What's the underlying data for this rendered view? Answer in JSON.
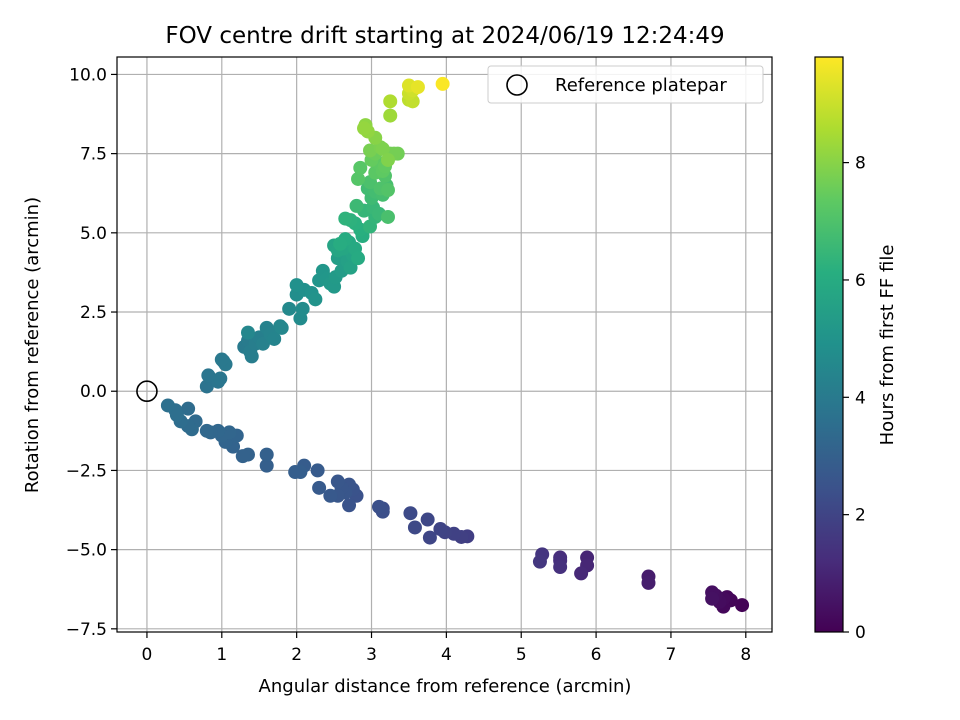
{
  "chart_data": {
    "type": "scatter",
    "title": "FOV centre drift starting at 2024/06/19 12:24:49",
    "xlabel": "Angular distance from reference (arcmin)",
    "ylabel": "Rotation from reference (arcmin)",
    "xlim": [
      -0.4,
      8.35
    ],
    "ylim": [
      -7.6,
      10.55
    ],
    "xticks": [
      0,
      1,
      2,
      3,
      4,
      5,
      6,
      7,
      8
    ],
    "xtick_labels": [
      "0",
      "1",
      "2",
      "3",
      "4",
      "5",
      "6",
      "7",
      "8"
    ],
    "yticks": [
      -7.5,
      -5.0,
      -2.5,
      0.0,
      2.5,
      5.0,
      7.5,
      10.0
    ],
    "ytick_labels": [
      "−7.5",
      "−5.0",
      "−2.5",
      "0.0",
      "2.5",
      "5.0",
      "7.5",
      "10.0"
    ],
    "grid": true,
    "legend": {
      "position": "top-right",
      "entries": [
        {
          "label": "Reference platepar",
          "marker": "open-circle"
        }
      ]
    },
    "reference_point": {
      "x": 0.0,
      "y": 0.0
    },
    "colorbar": {
      "label": "Hours from first FF file",
      "colormap": "viridis",
      "range": [
        0,
        9.8
      ],
      "ticks": [
        0,
        2,
        4,
        6,
        8
      ],
      "tick_labels": [
        "0",
        "2",
        "4",
        "6",
        "8"
      ]
    },
    "series": [
      {
        "points": [
          [
            7.95,
            -6.75,
            0.05
          ],
          [
            7.8,
            -6.6,
            0.1
          ],
          [
            7.75,
            -6.5,
            0.15
          ],
          [
            7.7,
            -6.8,
            0.2
          ],
          [
            7.7,
            -6.55,
            0.25
          ],
          [
            7.65,
            -6.65,
            0.3
          ],
          [
            7.6,
            -6.45,
            0.35
          ],
          [
            7.55,
            -6.35,
            0.4
          ],
          [
            7.55,
            -6.55,
            0.45
          ],
          [
            6.7,
            -5.85,
            0.75
          ],
          [
            6.7,
            -6.05,
            0.8
          ],
          [
            5.88,
            -5.25,
            1.0
          ],
          [
            5.88,
            -5.5,
            1.05
          ],
          [
            5.8,
            -5.75,
            1.1
          ],
          [
            5.52,
            -5.25,
            1.25
          ],
          [
            5.52,
            -5.35,
            1.3
          ],
          [
            5.52,
            -5.55,
            1.35
          ],
          [
            5.28,
            -5.15,
            1.5
          ],
          [
            5.25,
            -5.38,
            1.55
          ],
          [
            4.28,
            -4.58,
            1.8
          ],
          [
            4.2,
            -4.6,
            1.85
          ],
          [
            4.1,
            -4.5,
            1.9
          ],
          [
            3.98,
            -4.45,
            1.95
          ],
          [
            3.92,
            -4.35,
            2.0
          ],
          [
            3.78,
            -4.62,
            2.05
          ],
          [
            3.75,
            -4.05,
            2.1
          ],
          [
            3.58,
            -4.3,
            2.15
          ],
          [
            3.52,
            -3.85,
            2.2
          ],
          [
            3.15,
            -3.7,
            2.3
          ],
          [
            3.15,
            -3.8,
            2.35
          ],
          [
            3.1,
            -3.65,
            2.4
          ],
          [
            2.8,
            -3.3,
            2.45
          ],
          [
            2.75,
            -3.1,
            2.5
          ],
          [
            2.7,
            -3.6,
            2.5
          ],
          [
            2.7,
            -2.95,
            2.55
          ],
          [
            2.65,
            -3.2,
            2.6
          ],
          [
            2.6,
            -3.05,
            2.6
          ],
          [
            2.55,
            -3.3,
            2.65
          ],
          [
            2.55,
            -2.85,
            2.65
          ],
          [
            2.45,
            -3.3,
            2.7
          ],
          [
            2.3,
            -3.05,
            2.75
          ],
          [
            2.28,
            -2.5,
            2.8
          ],
          [
            2.1,
            -2.35,
            2.85
          ],
          [
            2.05,
            -2.55,
            2.9
          ],
          [
            1.98,
            -2.55,
            2.9
          ],
          [
            1.6,
            -2.35,
            2.95
          ],
          [
            1.6,
            -2.0,
            3.0
          ],
          [
            1.35,
            -2.0,
            3.05
          ],
          [
            1.28,
            -2.05,
            3.05
          ],
          [
            1.12,
            -1.6,
            3.1
          ],
          [
            1.15,
            -1.75,
            3.1
          ],
          [
            1.05,
            -1.6,
            3.15
          ],
          [
            1.2,
            -1.4,
            3.15
          ],
          [
            1.1,
            -1.3,
            3.2
          ],
          [
            1.0,
            -1.4,
            3.2
          ],
          [
            0.95,
            -1.25,
            3.25
          ],
          [
            0.85,
            -1.3,
            3.25
          ],
          [
            0.8,
            -1.25,
            3.3
          ],
          [
            0.65,
            -0.95,
            3.35
          ],
          [
            0.6,
            -1.2,
            3.4
          ],
          [
            0.55,
            -1.1,
            3.4
          ],
          [
            0.55,
            -0.55,
            3.45
          ],
          [
            0.45,
            -0.95,
            3.5
          ],
          [
            0.4,
            -0.75,
            3.55
          ],
          [
            0.38,
            -0.6,
            3.55
          ],
          [
            0.28,
            -0.45,
            3.6
          ],
          [
            0.8,
            0.15,
            3.7
          ],
          [
            0.85,
            0.4,
            3.75
          ],
          [
            0.95,
            0.3,
            3.8
          ],
          [
            0.82,
            0.5,
            3.8
          ],
          [
            0.98,
            0.4,
            3.85
          ],
          [
            1.02,
            0.95,
            3.9
          ],
          [
            1.05,
            0.85,
            3.95
          ],
          [
            1.0,
            1.0,
            3.95
          ],
          [
            1.3,
            1.4,
            4.0
          ],
          [
            1.35,
            1.6,
            4.05
          ],
          [
            1.38,
            1.25,
            4.1
          ],
          [
            1.4,
            1.1,
            4.1
          ],
          [
            1.45,
            1.5,
            4.15
          ],
          [
            1.5,
            1.7,
            4.2
          ],
          [
            1.55,
            1.5,
            4.25
          ],
          [
            1.6,
            2.0,
            4.3
          ],
          [
            1.65,
            1.8,
            4.35
          ],
          [
            1.7,
            1.65,
            4.4
          ],
          [
            1.78,
            2.05,
            4.45
          ],
          [
            1.8,
            2.0,
            4.5
          ],
          [
            1.35,
            1.85,
            4.5
          ],
          [
            1.9,
            2.6,
            4.6
          ],
          [
            2.05,
            2.3,
            4.65
          ],
          [
            2.08,
            2.6,
            4.7
          ],
          [
            2.0,
            3.05,
            4.8
          ],
          [
            2.1,
            3.2,
            4.85
          ],
          [
            2.0,
            3.35,
            4.9
          ],
          [
            2.2,
            3.1,
            4.95
          ],
          [
            2.25,
            2.9,
            5.0
          ],
          [
            2.3,
            3.5,
            5.05
          ],
          [
            2.35,
            3.8,
            5.1
          ],
          [
            2.4,
            3.55,
            5.15
          ],
          [
            2.45,
            3.4,
            5.2
          ],
          [
            2.5,
            3.3,
            5.25
          ],
          [
            2.52,
            3.6,
            5.3
          ],
          [
            2.6,
            3.8,
            5.35
          ],
          [
            2.65,
            4.0,
            5.4
          ],
          [
            2.55,
            4.2,
            5.45
          ],
          [
            2.6,
            4.4,
            5.5
          ],
          [
            2.68,
            4.1,
            5.55
          ],
          [
            2.72,
            3.9,
            5.6
          ],
          [
            2.75,
            4.3,
            5.65
          ],
          [
            2.5,
            4.6,
            5.7
          ],
          [
            2.55,
            4.45,
            5.75
          ],
          [
            2.62,
            4.5,
            5.8
          ],
          [
            2.7,
            4.7,
            5.85
          ],
          [
            2.78,
            4.5,
            5.9
          ],
          [
            2.82,
            4.2,
            5.95
          ],
          [
            2.65,
            4.8,
            6.0
          ],
          [
            2.58,
            4.65,
            6.05
          ],
          [
            2.88,
            4.9,
            6.1
          ],
          [
            2.85,
            5.1,
            6.15
          ],
          [
            2.78,
            5.3,
            6.2
          ],
          [
            2.72,
            5.4,
            6.25
          ],
          [
            2.65,
            5.45,
            6.3
          ],
          [
            2.98,
            5.2,
            6.35
          ],
          [
            3.05,
            5.5,
            6.4
          ],
          [
            2.9,
            5.7,
            6.45
          ],
          [
            3.02,
            5.8,
            6.5
          ],
          [
            3.1,
            5.6,
            6.55
          ],
          [
            2.8,
            5.85,
            6.6
          ],
          [
            3.0,
            6.1,
            6.65
          ],
          [
            2.95,
            6.4,
            6.7
          ],
          [
            3.05,
            6.3,
            6.75
          ],
          [
            3.15,
            6.2,
            6.8
          ],
          [
            3.2,
            6.5,
            6.85
          ],
          [
            3.22,
            5.5,
            6.9
          ],
          [
            2.98,
            6.6,
            6.95
          ],
          [
            3.12,
            6.4,
            7.0
          ],
          [
            3.18,
            6.8,
            7.05
          ],
          [
            3.22,
            6.35,
            7.1
          ],
          [
            2.82,
            6.7,
            7.15
          ],
          [
            2.85,
            7.05,
            7.2
          ],
          [
            3.05,
            6.9,
            7.25
          ],
          [
            3.1,
            7.2,
            7.3
          ],
          [
            3.15,
            6.95,
            7.35
          ],
          [
            3.18,
            7.1,
            7.4
          ],
          [
            3.0,
            7.3,
            7.45
          ],
          [
            3.05,
            7.5,
            7.55
          ],
          [
            3.25,
            7.5,
            7.6
          ],
          [
            3.35,
            7.5,
            7.65
          ],
          [
            3.3,
            7.5,
            7.7
          ],
          [
            2.98,
            7.6,
            7.75
          ],
          [
            3.12,
            7.7,
            7.8
          ],
          [
            3.15,
            7.65,
            7.85
          ],
          [
            3.22,
            7.3,
            7.9
          ],
          [
            3.05,
            8.0,
            8.0
          ],
          [
            2.92,
            8.4,
            8.1
          ],
          [
            2.95,
            8.2,
            8.15
          ],
          [
            2.9,
            8.3,
            8.2
          ],
          [
            3.25,
            8.7,
            8.35
          ],
          [
            3.25,
            9.15,
            8.6
          ],
          [
            3.5,
            9.2,
            8.8
          ],
          [
            3.55,
            9.15,
            8.9
          ],
          [
            3.5,
            9.4,
            9.0
          ],
          [
            3.55,
            9.5,
            9.1
          ],
          [
            3.5,
            9.65,
            9.3
          ],
          [
            3.62,
            9.6,
            9.45
          ],
          [
            3.95,
            9.7,
            9.75
          ]
        ]
      }
    ]
  }
}
